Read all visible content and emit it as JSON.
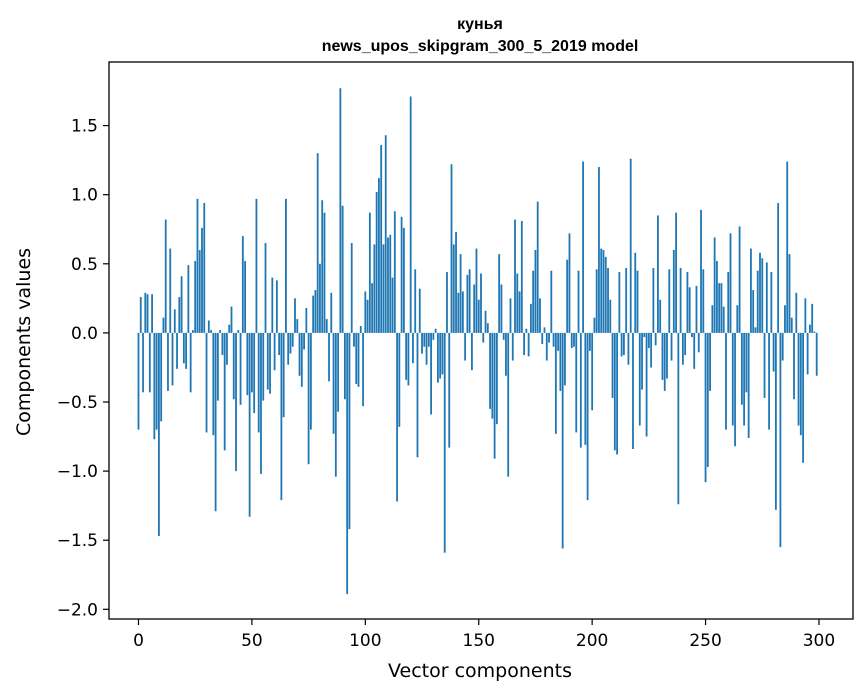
{
  "chart_data": {
    "type": "bar",
    "title_line1": "кунья",
    "title_line2": "news_upos_skipgram_300_5_2019 model",
    "xlabel": "Vector components",
    "ylabel": "Components values",
    "xlim": [
      -13,
      315
    ],
    "ylim": [
      -2.07,
      1.96
    ],
    "xticks": [
      0,
      50,
      100,
      150,
      200,
      250,
      300
    ],
    "xtick_labels": [
      "0",
      "50",
      "100",
      "150",
      "200",
      "250",
      "300"
    ],
    "yticks": [
      -2.0,
      -1.5,
      -1.0,
      -0.5,
      0.0,
      0.5,
      1.0,
      1.5
    ],
    "ytick_labels": [
      "−2.0",
      "−1.5",
      "−1.0",
      "−0.5",
      "0.0",
      "0.5",
      "1.0",
      "1.5"
    ],
    "bar_color": "#1f77b4",
    "series": [
      {
        "name": "кунья",
        "values": [
          -0.7,
          0.26,
          -0.43,
          0.29,
          0.28,
          -0.43,
          0.28,
          -0.77,
          -0.7,
          -1.47,
          -0.64,
          0.11,
          0.82,
          -0.42,
          0.61,
          -0.38,
          0.17,
          -0.26,
          0.26,
          0.41,
          -0.22,
          -0.26,
          0.49,
          -0.43,
          0.02,
          0.52,
          0.97,
          0.6,
          0.76,
          0.94,
          -0.72,
          0.09,
          0.02,
          -0.74,
          -1.29,
          -0.49,
          0.02,
          -0.16,
          -0.85,
          -0.23,
          0.06,
          0.19,
          -0.48,
          -1.0,
          0.02,
          -0.52,
          0.7,
          0.52,
          -0.45,
          -1.33,
          -0.43,
          -0.58,
          0.97,
          -0.72,
          -1.02,
          -0.49,
          0.65,
          -0.41,
          -0.44,
          0.4,
          -0.27,
          0.38,
          -0.16,
          -1.21,
          -0.61,
          0.97,
          -0.23,
          -0.15,
          -0.1,
          0.25,
          0.1,
          -0.31,
          -0.39,
          -0.12,
          0.18,
          -0.95,
          -0.7,
          0.27,
          0.31,
          1.3,
          0.5,
          0.96,
          0.87,
          0.1,
          -0.35,
          0.29,
          -0.73,
          -1.04,
          -0.57,
          1.77,
          0.92,
          -0.48,
          -1.89,
          -1.42,
          0.65,
          -0.1,
          -0.37,
          -0.39,
          0.05,
          -0.53,
          0.3,
          0.24,
          0.87,
          0.36,
          0.64,
          1.02,
          1.12,
          1.36,
          0.64,
          1.43,
          0.69,
          0.71,
          0.4,
          0.88,
          -1.22,
          -0.68,
          0.84,
          0.76,
          -0.34,
          -0.38,
          1.71,
          -0.22,
          0.46,
          -0.9,
          0.32,
          -0.15,
          -0.1,
          -0.23,
          -0.1,
          -0.59,
          -0.05,
          0.03,
          -0.36,
          -0.33,
          -0.3,
          -1.59,
          0.44,
          -0.83,
          1.22,
          0.64,
          0.73,
          0.29,
          0.57,
          0.3,
          -0.2,
          0.42,
          0.46,
          -0.27,
          0.35,
          0.61,
          0.24,
          0.43,
          -0.07,
          0.16,
          0.07,
          -0.55,
          -0.62,
          -0.91,
          -0.66,
          0.57,
          0.35,
          -0.05,
          -0.31,
          -1.04,
          0.25,
          -0.2,
          0.82,
          0.43,
          0.3,
          0.81,
          -0.16,
          0.03,
          -0.17,
          0.21,
          0.45,
          0.6,
          0.95,
          0.25,
          -0.08,
          0.04,
          -0.2,
          -0.07,
          0.45,
          -0.1,
          -0.73,
          -0.13,
          -0.42,
          -1.56,
          -0.38,
          0.53,
          0.72,
          -0.11,
          -0.1,
          -0.72,
          0.45,
          -0.83,
          1.24,
          -0.81,
          -1.21,
          -0.13,
          -0.56,
          0.11,
          0.46,
          1.2,
          0.61,
          0.6,
          0.55,
          0.47,
          0.24,
          -0.47,
          -0.85,
          -0.88,
          0.44,
          -0.17,
          -0.16,
          0.47,
          -0.23,
          1.26,
          -0.84,
          0.58,
          0.45,
          -0.67,
          -0.41,
          -0.03,
          -0.75,
          -0.11,
          -0.25,
          0.47,
          -0.09,
          0.85,
          0.24,
          -0.34,
          -0.42,
          -0.33,
          0.46,
          -0.2,
          0.6,
          0.87,
          -1.24,
          0.47,
          -0.23,
          -0.16,
          0.44,
          0.33,
          -0.03,
          -0.26,
          0.34,
          -0.14,
          0.89,
          0.46,
          -1.08,
          -0.97,
          -0.42,
          0.2,
          0.69,
          0.52,
          0.36,
          0.36,
          0.19,
          -0.7,
          0.44,
          0.72,
          -0.67,
          -0.82,
          0.2,
          0.77,
          -0.52,
          -0.67,
          -0.43,
          -0.76,
          0.61,
          0.31,
          0.04,
          0.45,
          0.58,
          0.54,
          -0.47,
          0.51,
          -0.7,
          0.44,
          -0.28,
          -1.28,
          0.94,
          -1.55,
          -0.2,
          0.2,
          1.24,
          0.57,
          0.11,
          -0.48,
          0.29,
          -0.67,
          -0.74,
          -0.94,
          0.25,
          -0.3,
          0.06,
          0.21,
          0.01,
          -0.31
        ]
      }
    ]
  }
}
